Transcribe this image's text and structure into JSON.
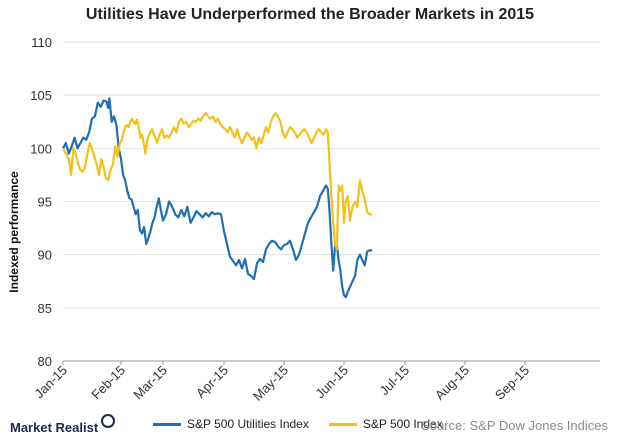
{
  "chart_data": {
    "type": "line",
    "title": "Utilities Have Underperformed the Broader Markets in 2015",
    "ylabel": "Indexed performance",
    "xlabel": "",
    "ylim": [
      80,
      110
    ],
    "yticks": [
      80,
      85,
      90,
      95,
      100,
      105,
      110
    ],
    "x_tick_labels": [
      "Jan-15",
      "Feb-15",
      "Mar-15",
      "Apr-15",
      "May-15",
      "Jun-15",
      "Jul-15",
      "Aug-15",
      "Sep-15"
    ],
    "grid": "horizontal",
    "legend_position": "bottom",
    "series": [
      {
        "name": "S&P 500 Utilities Index",
        "color": "#1f6fb4",
        "points": [
          [
            0.0,
            100.0
          ],
          [
            0.05,
            100.5
          ],
          [
            0.1,
            99.5
          ],
          [
            0.15,
            100.2
          ],
          [
            0.2,
            101.0
          ],
          [
            0.25,
            100.0
          ],
          [
            0.3,
            100.5
          ],
          [
            0.35,
            101.0
          ],
          [
            0.4,
            100.8
          ],
          [
            0.45,
            101.5
          ],
          [
            0.5,
            102.8
          ],
          [
            0.55,
            103.0
          ],
          [
            0.6,
            104.3
          ],
          [
            0.65,
            103.9
          ],
          [
            0.7,
            104.5
          ],
          [
            0.75,
            104.4
          ],
          [
            0.78,
            103.8
          ],
          [
            0.8,
            104.7
          ],
          [
            0.84,
            102.5
          ],
          [
            0.88,
            103.0
          ],
          [
            0.92,
            102.2
          ],
          [
            0.96,
            100.0
          ],
          [
            1.0,
            99.0
          ],
          [
            1.05,
            97.5
          ],
          [
            1.1,
            97.0
          ],
          [
            1.15,
            96.0
          ],
          [
            1.2,
            95.3
          ],
          [
            1.25,
            95.2
          ],
          [
            1.3,
            94.5
          ],
          [
            1.35,
            93.8
          ],
          [
            1.4,
            94.2
          ],
          [
            1.45,
            92.3
          ],
          [
            1.5,
            92.0
          ],
          [
            1.55,
            92.6
          ],
          [
            1.6,
            91.0
          ],
          [
            1.65,
            91.5
          ],
          [
            1.7,
            92.2
          ],
          [
            1.75,
            93.0
          ],
          [
            1.8,
            93.5
          ],
          [
            1.85,
            94.5
          ],
          [
            1.9,
            95.3
          ],
          [
            1.95,
            94.2
          ],
          [
            2.0,
            93.2
          ],
          [
            2.05,
            93.8
          ],
          [
            2.1,
            95.0
          ],
          [
            2.15,
            94.5
          ],
          [
            2.2,
            93.8
          ],
          [
            2.25,
            93.5
          ],
          [
            2.3,
            94.2
          ],
          [
            2.35,
            93.6
          ],
          [
            2.4,
            94.5
          ],
          [
            2.45,
            93.0
          ],
          [
            2.5,
            93.5
          ],
          [
            2.55,
            94.1
          ],
          [
            2.6,
            93.8
          ],
          [
            2.65,
            93.5
          ],
          [
            2.7,
            93.9
          ],
          [
            2.75,
            93.6
          ],
          [
            2.8,
            94.0
          ],
          [
            2.85,
            93.8
          ],
          [
            2.9,
            93.9
          ],
          [
            2.95,
            93.8
          ],
          [
            3.0,
            92.2
          ],
          [
            3.05,
            91.0
          ],
          [
            3.1,
            89.8
          ],
          [
            3.15,
            89.4
          ],
          [
            3.2,
            89.0
          ],
          [
            3.25,
            89.5
          ],
          [
            3.3,
            88.7
          ],
          [
            3.35,
            89.6
          ],
          [
            3.4,
            88.2
          ],
          [
            3.45,
            88.0
          ],
          [
            3.5,
            87.7
          ],
          [
            3.55,
            89.2
          ],
          [
            3.6,
            89.6
          ],
          [
            3.65,
            89.3
          ],
          [
            3.7,
            90.5
          ],
          [
            3.75,
            91.0
          ],
          [
            3.8,
            91.3
          ],
          [
            3.85,
            91.2
          ],
          [
            3.9,
            90.8
          ],
          [
            3.95,
            90.5
          ],
          [
            4.0,
            90.9
          ],
          [
            4.05,
            91.0
          ],
          [
            4.1,
            91.3
          ],
          [
            4.15,
            90.5
          ],
          [
            4.2,
            89.5
          ],
          [
            4.25,
            90.0
          ],
          [
            4.3,
            91.0
          ],
          [
            4.35,
            92.0
          ],
          [
            4.4,
            93.0
          ],
          [
            4.45,
            93.5
          ],
          [
            4.5,
            94.0
          ],
          [
            4.55,
            94.5
          ],
          [
            4.6,
            95.5
          ],
          [
            4.65,
            96.0
          ],
          [
            4.7,
            96.5
          ],
          [
            4.73,
            96.2
          ],
          [
            4.76,
            94.0
          ],
          [
            4.79,
            91.0
          ],
          [
            4.82,
            88.5
          ],
          [
            4.85,
            90.8
          ],
          [
            4.88,
            91.0
          ],
          [
            4.91,
            89.5
          ],
          [
            4.94,
            88.5
          ],
          [
            4.97,
            87.0
          ],
          [
            5.0,
            86.2
          ],
          [
            5.03,
            86.0
          ],
          [
            5.06,
            86.5
          ],
          [
            5.1,
            87.0
          ],
          [
            5.14,
            87.5
          ],
          [
            5.18,
            88.0
          ],
          [
            5.22,
            89.5
          ],
          [
            5.26,
            90.0
          ],
          [
            5.3,
            89.5
          ],
          [
            5.34,
            89.0
          ],
          [
            5.38,
            90.3
          ],
          [
            5.42,
            90.4
          ],
          [
            5.46,
            90.4
          ]
        ]
      },
      {
        "name": "S&P 500 Index",
        "color": "#f2c21b",
        "points": [
          [
            0.0,
            100.0
          ],
          [
            0.05,
            99.5
          ],
          [
            0.1,
            99.0
          ],
          [
            0.14,
            97.5
          ],
          [
            0.18,
            100.0
          ],
          [
            0.22,
            99.5
          ],
          [
            0.26,
            98.5
          ],
          [
            0.3,
            98.0
          ],
          [
            0.34,
            97.8
          ],
          [
            0.38,
            98.2
          ],
          [
            0.42,
            99.5
          ],
          [
            0.46,
            100.5
          ],
          [
            0.5,
            100.0
          ],
          [
            0.54,
            99.2
          ],
          [
            0.58,
            98.5
          ],
          [
            0.62,
            97.5
          ],
          [
            0.66,
            99.0
          ],
          [
            0.7,
            98.3
          ],
          [
            0.74,
            97.2
          ],
          [
            0.78,
            97.0
          ],
          [
            0.82,
            98.0
          ],
          [
            0.86,
            98.5
          ],
          [
            0.9,
            100.2
          ],
          [
            0.94,
            99.2
          ],
          [
            0.98,
            100.5
          ],
          [
            1.02,
            100.8
          ],
          [
            1.06,
            101.5
          ],
          [
            1.1,
            102.0
          ],
          [
            1.14,
            102.2
          ],
          [
            1.18,
            102.0
          ],
          [
            1.22,
            102.5
          ],
          [
            1.26,
            102.8
          ],
          [
            1.3,
            102.5
          ],
          [
            1.34,
            102.3
          ],
          [
            1.38,
            102.7
          ],
          [
            1.42,
            102.0
          ],
          [
            1.46,
            101.0
          ],
          [
            1.5,
            101.3
          ],
          [
            1.54,
            100.5
          ],
          [
            1.58,
            99.5
          ],
          [
            1.62,
            100.6
          ],
          [
            1.66,
            101.2
          ],
          [
            1.7,
            101.5
          ],
          [
            1.74,
            101.8
          ],
          [
            1.78,
            101.3
          ],
          [
            1.82,
            101.0
          ],
          [
            1.86,
            100.5
          ],
          [
            1.9,
            101.0
          ],
          [
            1.94,
            101.5
          ],
          [
            1.98,
            101.8
          ],
          [
            2.02,
            101.0
          ],
          [
            2.06,
            101.2
          ],
          [
            2.1,
            101.0
          ],
          [
            2.14,
            101.5
          ],
          [
            2.18,
            102.0
          ],
          [
            2.22,
            101.5
          ],
          [
            2.26,
            102.5
          ],
          [
            2.3,
            102.8
          ],
          [
            2.34,
            102.3
          ],
          [
            2.38,
            102.5
          ],
          [
            2.42,
            102.0
          ],
          [
            2.46,
            102.3
          ],
          [
            2.5,
            102.6
          ],
          [
            2.54,
            102.5
          ],
          [
            2.58,
            102.8
          ],
          [
            2.62,
            102.6
          ],
          [
            2.66,
            103.1
          ],
          [
            2.7,
            103.3
          ],
          [
            2.74,
            103.0
          ],
          [
            2.78,
            102.8
          ],
          [
            2.82,
            103.0
          ],
          [
            2.86,
            102.5
          ],
          [
            2.9,
            102.8
          ],
          [
            2.94,
            102.3
          ],
          [
            2.98,
            102.0
          ],
          [
            3.02,
            101.8
          ],
          [
            3.06,
            101.5
          ],
          [
            3.1,
            102.0
          ],
          [
            3.14,
            101.5
          ],
          [
            3.18,
            101.0
          ],
          [
            3.22,
            101.8
          ],
          [
            3.26,
            101.0
          ],
          [
            3.3,
            100.5
          ],
          [
            3.34,
            101.0
          ],
          [
            3.38,
            101.5
          ],
          [
            3.42,
            101.2
          ],
          [
            3.46,
            100.8
          ],
          [
            3.5,
            101.0
          ],
          [
            3.54,
            100.0
          ],
          [
            3.58,
            101.0
          ],
          [
            3.62,
            100.5
          ],
          [
            3.66,
            101.2
          ],
          [
            3.7,
            102.0
          ],
          [
            3.74,
            101.5
          ],
          [
            3.78,
            102.5
          ],
          [
            3.82,
            103.0
          ],
          [
            3.86,
            103.3
          ],
          [
            3.9,
            103.0
          ],
          [
            3.94,
            102.5
          ],
          [
            3.98,
            101.5
          ],
          [
            4.02,
            101.0
          ],
          [
            4.06,
            101.5
          ],
          [
            4.1,
            102.0
          ],
          [
            4.14,
            101.8
          ],
          [
            4.18,
            101.5
          ],
          [
            4.22,
            101.0
          ],
          [
            4.26,
            101.3
          ],
          [
            4.3,
            101.6
          ],
          [
            4.34,
            101.8
          ],
          [
            4.38,
            101.5
          ],
          [
            4.42,
            101.0
          ],
          [
            4.46,
            100.5
          ],
          [
            4.5,
            101.0
          ],
          [
            4.54,
            101.5
          ],
          [
            4.58,
            101.8
          ],
          [
            4.62,
            101.5
          ],
          [
            4.66,
            101.3
          ],
          [
            4.7,
            101.8
          ],
          [
            4.73,
            101.5
          ],
          [
            4.76,
            98.5
          ],
          [
            4.79,
            95.5
          ],
          [
            4.82,
            93.0
          ],
          [
            4.85,
            91.0
          ],
          [
            4.88,
            90.5
          ],
          [
            4.91,
            96.5
          ],
          [
            4.94,
            96.0
          ],
          [
            4.97,
            96.5
          ],
          [
            5.0,
            93.0
          ],
          [
            5.03,
            95.0
          ],
          [
            5.06,
            95.5
          ],
          [
            5.1,
            93.2
          ],
          [
            5.14,
            94.5
          ],
          [
            5.18,
            95.0
          ],
          [
            5.22,
            94.5
          ],
          [
            5.26,
            97.0
          ],
          [
            5.3,
            96.0
          ],
          [
            5.34,
            95.2
          ],
          [
            5.38,
            94.0
          ],
          [
            5.42,
            93.8
          ],
          [
            5.46,
            93.8
          ]
        ]
      }
    ]
  },
  "footer": {
    "brand": "Market Realist",
    "source": "Source: S&P Dow Jones Indices"
  }
}
